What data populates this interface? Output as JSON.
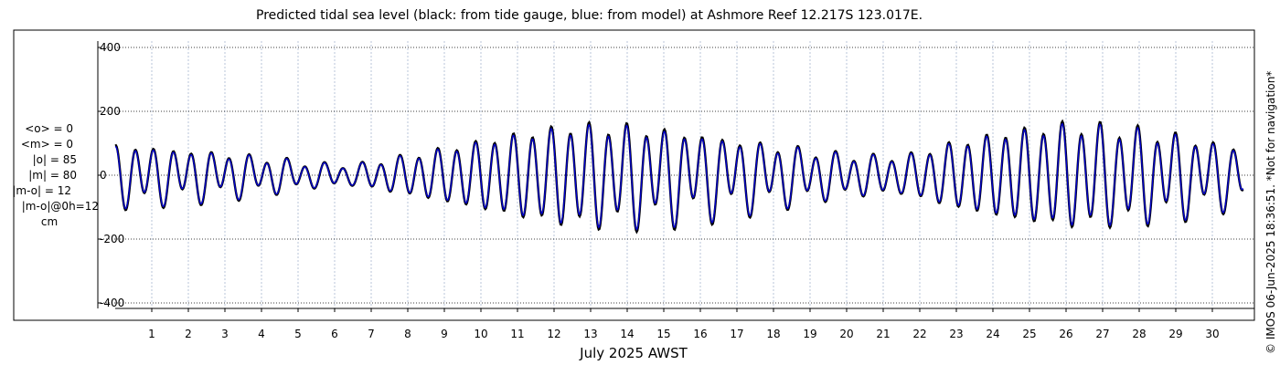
{
  "chart_data": {
    "type": "line",
    "title": "Predicted tidal sea level (black: from tide gauge, blue: from model) at Ashmore Reef 12.217S 123.017E.",
    "xlabel": "July 2025 AWST",
    "ylabel": "",
    "ylim": [
      -450,
      450
    ],
    "xlim": [
      0,
      31
    ],
    "y_ticks": [
      400,
      200,
      0,
      -200,
      -400
    ],
    "x_ticks": [
      1,
      2,
      3,
      4,
      5,
      6,
      7,
      8,
      9,
      10,
      11,
      12,
      13,
      14,
      15,
      16,
      17,
      18,
      19,
      20,
      21,
      22,
      23,
      24,
      25,
      26,
      27,
      28,
      29,
      30
    ],
    "grid": true,
    "series": [
      {
        "name": "tide gauge",
        "color": "#000000"
      },
      {
        "name": "model",
        "color": "#0000cc"
      }
    ],
    "envelope_days": [
      0.3,
      1.5,
      3,
      4.5,
      5.5,
      6.5,
      8,
      9.5,
      11,
      12.5,
      14,
      15.5,
      17,
      18.5,
      20,
      21.5,
      23,
      24.5,
      26,
      27.5,
      29,
      30.5
    ],
    "envelope_amplitude_cm": [
      105,
      90,
      75,
      55,
      40,
      35,
      70,
      110,
      150,
      180,
      175,
      150,
      120,
      95,
      70,
      65,
      120,
      160,
      185,
      170,
      140,
      100
    ]
  },
  "stats": {
    "mean_obs": "<o> = 0",
    "mean_model": "<m> = 0",
    "abs_obs": "|o| = 85",
    "abs_model": "|m| = 80",
    "abs_diff": "|m-o| = 12",
    "abs_diff_0h": "|m-o|@0h=12",
    "unit": "cm"
  },
  "credit": "© IMOS 06-Jun-2025 18:36:51. *Not for navigation*"
}
